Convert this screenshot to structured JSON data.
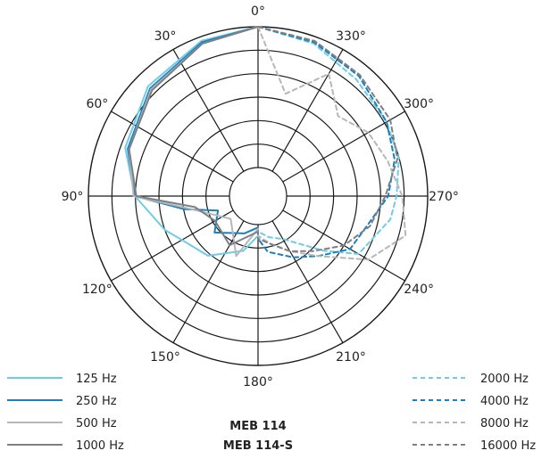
{
  "chart_data": {
    "type": "polar",
    "angle_labels": [
      "0°",
      "30°",
      "60°",
      "90°",
      "120°",
      "150°",
      "180°",
      "210°",
      "240°",
      "270°",
      "300°",
      "330°"
    ],
    "angle_ticks_deg": [
      0,
      30,
      60,
      90,
      120,
      150,
      180,
      210,
      240,
      270,
      300,
      330
    ],
    "radial_rings": 6,
    "grid": true,
    "model_lines": [
      "MEB 114",
      "MEB 114-S"
    ],
    "colors": {
      "grid": "#1a1a1a",
      "c125": "#6fcbe9",
      "c250": "#1a80c0",
      "c500": "#b5b7b9",
      "c1000": "#7e8083",
      "c2000": "#6fcbe9",
      "c4000": "#1a80c0",
      "c8000": "#b5b7b9",
      "c16000": "#7e8083"
    },
    "series": [
      {
        "name": "125 Hz",
        "key": "c125",
        "style": "solid",
        "side": "left",
        "angles": [
          0,
          20,
          45,
          70,
          90,
          110,
          120,
          140,
          165,
          180
        ],
        "values": [
          1.0,
          0.97,
          0.9,
          0.8,
          0.67,
          0.5,
          0.42,
          0.35,
          0.2,
          0.08
        ]
      },
      {
        "name": "250 Hz",
        "key": "c250",
        "style": "solid",
        "side": "left",
        "angles": [
          0,
          20,
          45,
          70,
          90,
          100,
          110,
          130,
          160,
          180
        ],
        "values": [
          1.0,
          0.96,
          0.88,
          0.78,
          0.67,
          0.33,
          0.1,
          0.2,
          0.08,
          0.02
        ]
      },
      {
        "name": "500 Hz",
        "key": "c500",
        "style": "solid",
        "side": "left",
        "angles": [
          0,
          20,
          45,
          70,
          90,
          100,
          130,
          160,
          180
        ],
        "values": [
          1.0,
          0.95,
          0.87,
          0.77,
          0.68,
          0.3,
          0.05,
          0.25,
          0.03
        ]
      },
      {
        "name": "1000 Hz",
        "key": "c1000",
        "style": "solid",
        "side": "left",
        "angles": [
          0,
          20,
          45,
          70,
          90,
          100,
          120,
          150,
          180
        ],
        "values": [
          1.0,
          0.95,
          0.86,
          0.77,
          0.66,
          0.25,
          0.15,
          0.2,
          0.05
        ]
      },
      {
        "name": "2000 Hz",
        "key": "c2000",
        "style": "dashed",
        "side": "right",
        "angles": [
          0,
          340,
          320,
          300,
          285,
          270,
          260,
          240,
          230,
          210,
          195,
          180
        ],
        "values": [
          1.0,
          0.95,
          0.88,
          0.85,
          0.83,
          0.78,
          0.75,
          0.62,
          0.4,
          0.15,
          0.1,
          0.05
        ]
      },
      {
        "name": "4000 Hz",
        "key": "c4000",
        "style": "dashed",
        "side": "right",
        "angles": [
          0,
          340,
          320,
          300,
          285,
          270,
          255,
          240,
          225,
          210,
          190,
          180
        ],
        "values": [
          1.0,
          0.96,
          0.91,
          0.85,
          0.8,
          0.72,
          0.6,
          0.55,
          0.4,
          0.3,
          0.2,
          0.1
        ]
      },
      {
        "name": "8000 Hz",
        "key": "c8000",
        "style": "dashed",
        "side": "right",
        "angles": [
          0,
          345,
          330,
          315,
          300,
          285,
          270,
          255,
          240,
          225,
          210,
          195,
          180
        ],
        "values": [
          1.0,
          0.55,
          0.8,
          0.6,
          0.7,
          0.75,
          0.82,
          0.88,
          0.7,
          0.4,
          0.25,
          0.15,
          0.08
        ]
      },
      {
        "name": "16000 Hz",
        "key": "c16000",
        "style": "dashed",
        "side": "right",
        "angles": [
          0,
          340,
          320,
          300,
          285,
          270,
          255,
          240,
          225,
          210,
          195,
          180
        ],
        "values": [
          1.0,
          0.97,
          0.92,
          0.88,
          0.82,
          0.7,
          0.62,
          0.5,
          0.35,
          0.25,
          0.15,
          0.1
        ]
      }
    ]
  }
}
